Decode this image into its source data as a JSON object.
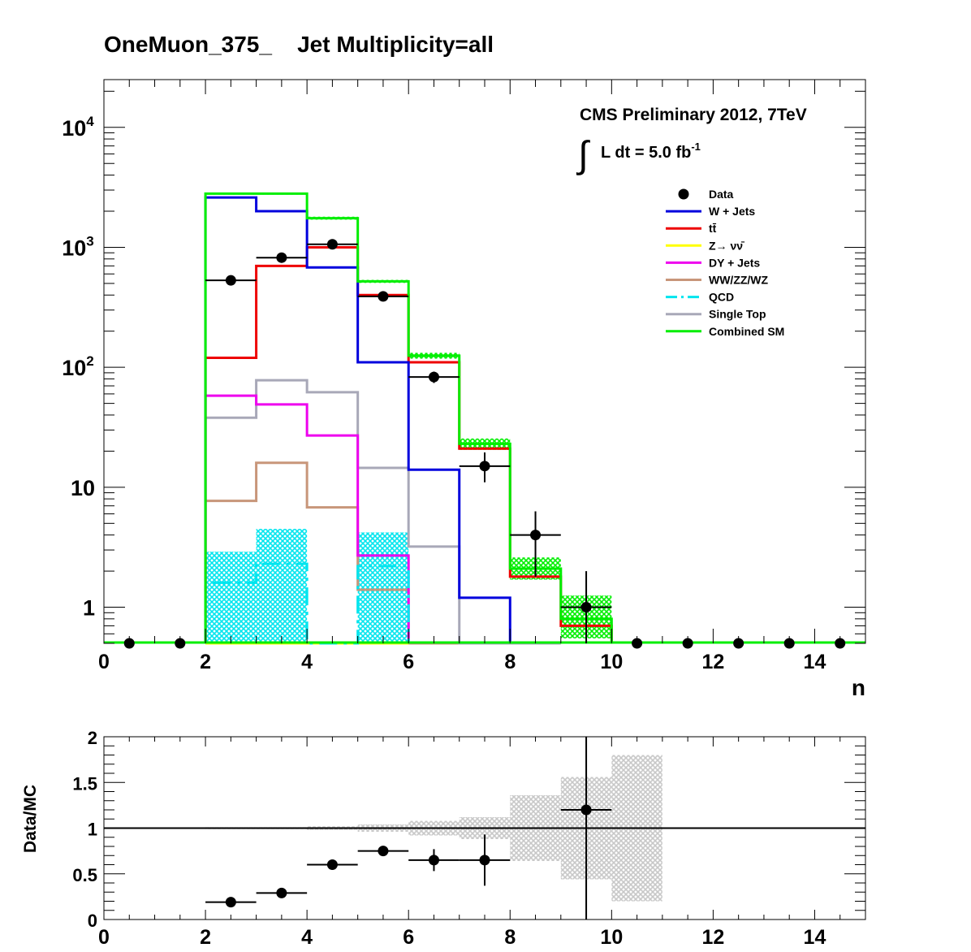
{
  "title": "OneMuon_375_    Jet Multiplicity=all",
  "annotations": {
    "experiment": "CMS Preliminary 2012, 7TeV",
    "lumi_integral_symbol": "∫",
    "lumi_text": "L dt = 5.0 fb",
    "lumi_exponent": "-1"
  },
  "colors": {
    "data": "#000000",
    "wjets": "#0000dd",
    "ttbar": "#ee0000",
    "znunu": "#ffff00",
    "dyjets": "#ee00ee",
    "diboson": "#c8967a",
    "qcd": "#00e5ee",
    "singletop": "#a8a8b8",
    "combined": "#00ee00",
    "ratio_band": "#c8c8c8"
  },
  "chart_data": [
    {
      "type": "line",
      "subtype": "step-histogram",
      "xlabel": "n",
      "ylabel": "",
      "xlim": [
        0,
        15
      ],
      "ylim": [
        0.5,
        25000
      ],
      "log_y": true,
      "x_tick_labels": [
        "0",
        "2",
        "4",
        "6",
        "8",
        "10",
        "12",
        "14"
      ],
      "y_tick_labels": [
        {
          "value": 1,
          "label": "1"
        },
        {
          "value": 10,
          "label": "10"
        },
        {
          "value": 100,
          "label": "10",
          "exp": "2"
        },
        {
          "value": 1000,
          "label": "10",
          "exp": "3"
        },
        {
          "value": 10000,
          "label": "10",
          "exp": "4"
        }
      ],
      "legend_position": "top-right",
      "bin_edges": [
        0,
        1,
        2,
        3,
        4,
        5,
        6,
        7,
        8,
        9,
        10,
        11,
        12,
        13,
        14,
        15
      ],
      "series": [
        {
          "key": "wjets",
          "name": "W + Jets",
          "values": [
            0,
            0,
            2600,
            2000,
            680,
            110,
            14,
            1.2,
            0,
            0,
            0,
            0,
            0,
            0,
            0
          ]
        },
        {
          "key": "ttbar",
          "name": "tt̄",
          "values": [
            0,
            0,
            120,
            700,
            1000,
            400,
            110,
            21,
            1.8,
            0.7,
            0,
            0,
            0,
            0,
            0
          ]
        },
        {
          "key": "znunu",
          "name": "Z→ νν̄",
          "values": [
            0,
            0,
            0.5,
            0.5,
            0.5,
            0.5,
            0,
            0,
            0,
            0,
            0,
            0,
            0,
            0,
            0
          ]
        },
        {
          "key": "dyjets",
          "name": "DY + Jets",
          "values": [
            0,
            0,
            58,
            49,
            27,
            2.7,
            0,
            0,
            0,
            0,
            0,
            0,
            0,
            0,
            0
          ]
        },
        {
          "key": "diboson",
          "name": "WW/ZZ/WZ",
          "values": [
            0,
            0,
            7.7,
            16,
            6.8,
            1.4,
            0.5,
            0.5,
            0,
            0,
            0,
            0,
            0,
            0,
            0
          ]
        },
        {
          "key": "qcd",
          "name": "QCD",
          "values": [
            0,
            0,
            1.6,
            2.3,
            0,
            2.2,
            0,
            0,
            0,
            0,
            0,
            0,
            0,
            0,
            0
          ]
        },
        {
          "key": "singletop",
          "name": "Single Top",
          "values": [
            0,
            0,
            38,
            78,
            62,
            14.5,
            3.2,
            0.5,
            0.5,
            0,
            0,
            0,
            0,
            0,
            0
          ]
        },
        {
          "key": "combined",
          "name": "Combined SM",
          "values": [
            0,
            0,
            2800,
            2800,
            1750,
            520,
            125,
            23,
            2.1,
            0.8,
            0,
            0,
            0,
            0,
            0
          ]
        }
      ],
      "combined_band": {
        "low": [
          0,
          0,
          2750,
          2750,
          1700,
          505,
          118,
          20.5,
          1.7,
          0.55,
          0,
          0,
          0,
          0,
          0
        ],
        "high": [
          0,
          0,
          2850,
          2850,
          1800,
          535,
          132,
          25.5,
          2.6,
          1.25,
          0,
          0,
          0,
          0,
          0
        ]
      },
      "qcd_band": {
        "low": [
          0,
          0,
          0.5,
          0.5,
          0,
          0.5,
          0,
          0,
          0,
          0,
          0,
          0,
          0,
          0,
          0
        ],
        "high": [
          0,
          0,
          2.9,
          4.5,
          0,
          4.2,
          0,
          0,
          0,
          0,
          0,
          0,
          0,
          0,
          0
        ]
      },
      "data_points": [
        {
          "x": 0.5,
          "y": 0
        },
        {
          "x": 1.5,
          "y": 0
        },
        {
          "x": 2.5,
          "y": 530,
          "elo": 23,
          "ehi": 23
        },
        {
          "x": 3.5,
          "y": 820,
          "elo": 29,
          "ehi": 29
        },
        {
          "x": 4.5,
          "y": 1060,
          "elo": 33,
          "ehi": 33
        },
        {
          "x": 5.5,
          "y": 390,
          "elo": 20,
          "ehi": 20
        },
        {
          "x": 6.5,
          "y": 83,
          "elo": 9,
          "ehi": 9
        },
        {
          "x": 7.5,
          "y": 15,
          "elo": 4,
          "ehi": 4.5
        },
        {
          "x": 8.5,
          "y": 4,
          "elo": 2.2,
          "ehi": 2.3
        },
        {
          "x": 9.5,
          "y": 1,
          "elo": 1,
          "ehi": 1
        },
        {
          "x": 10.5,
          "y": 0
        },
        {
          "x": 11.5,
          "y": 0
        },
        {
          "x": 12.5,
          "y": 0
        },
        {
          "x": 13.5,
          "y": 0
        },
        {
          "x": 14.5,
          "y": 0
        }
      ]
    },
    {
      "type": "scatter",
      "subtype": "ratio",
      "xlabel": "",
      "ylabel": "Data/MC",
      "xlim": [
        0,
        15
      ],
      "ylim": [
        0,
        2
      ],
      "x_tick_labels": [
        "0",
        "2",
        "4",
        "6",
        "8",
        "10",
        "12",
        "14"
      ],
      "y_tick_labels": [
        "0",
        "0.5",
        "1",
        "1.5",
        "2"
      ],
      "reference_line": 1,
      "band_low": [
        0,
        0,
        0.99,
        0.99,
        0.98,
        0.96,
        0.92,
        0.88,
        0.64,
        0.44,
        0.2,
        0,
        0,
        0,
        0
      ],
      "band_high": [
        0,
        0,
        1.01,
        1.01,
        1.02,
        1.04,
        1.08,
        1.12,
        1.36,
        1.56,
        1.8,
        0,
        0,
        0,
        0
      ],
      "points": [
        {
          "x": 2.5,
          "y": 0.19,
          "elo": 0,
          "ehi": 0
        },
        {
          "x": 3.5,
          "y": 0.29,
          "elo": 0,
          "ehi": 0
        },
        {
          "x": 4.5,
          "y": 0.6,
          "elo": 0,
          "ehi": 0
        },
        {
          "x": 5.5,
          "y": 0.75,
          "elo": 0,
          "ehi": 0
        },
        {
          "x": 6.5,
          "y": 0.65,
          "elo": 0.12,
          "ehi": 0.12
        },
        {
          "x": 7.5,
          "y": 0.65,
          "elo": 0.28,
          "ehi": 0.28
        },
        {
          "x": 9.5,
          "y": 1.2,
          "elo": 1.2,
          "ehi": 1.2
        }
      ]
    }
  ]
}
